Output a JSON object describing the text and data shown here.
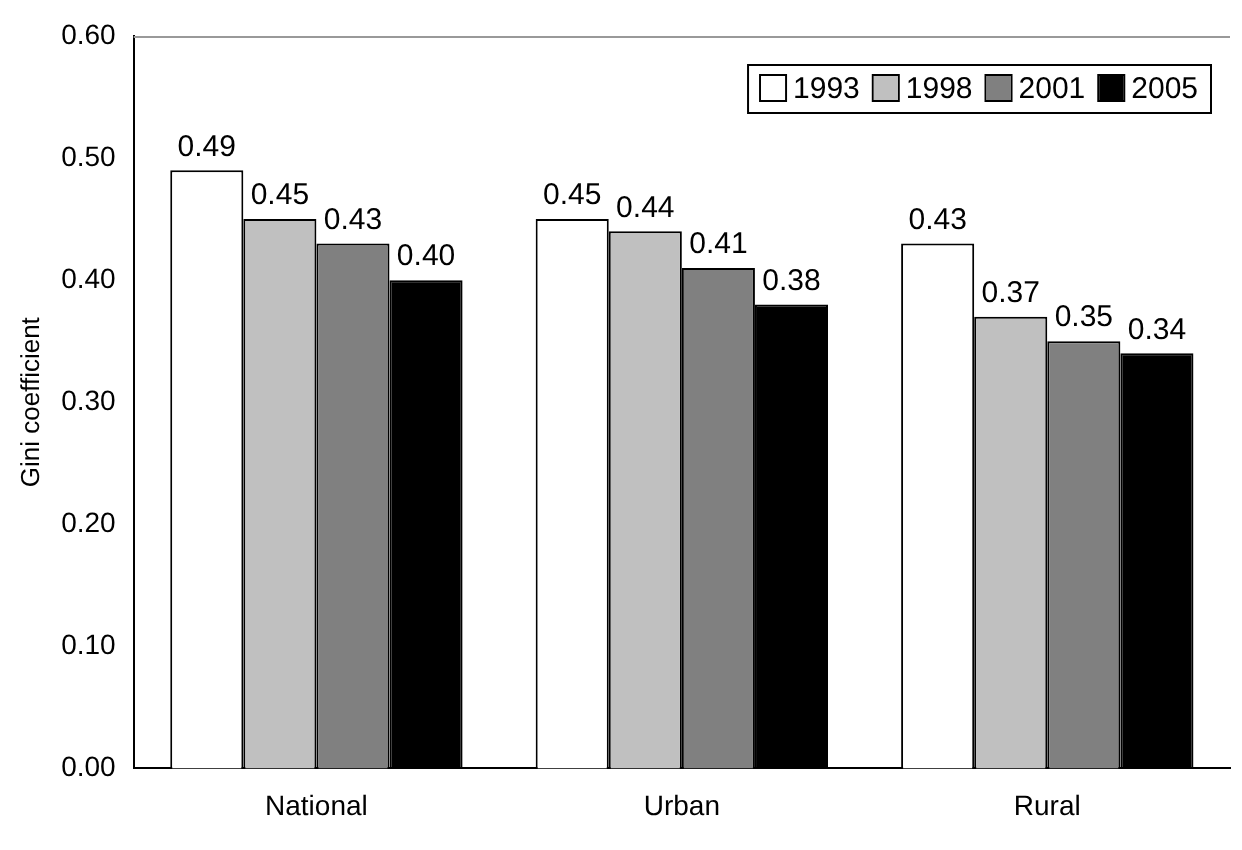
{
  "chart_data": {
    "type": "bar",
    "ylabel": "Gini coefficient",
    "categories": [
      "National",
      "Urban",
      "Rural"
    ],
    "series": [
      {
        "name": "1993",
        "color": "#ffffff",
        "values": [
          0.49,
          0.45,
          0.43
        ],
        "value_labels": [
          "0.49",
          "0.45",
          "0.43"
        ]
      },
      {
        "name": "1998",
        "color": "#c0c0c0",
        "values": [
          0.45,
          0.44,
          0.37
        ],
        "value_labels": [
          "0.45",
          "0.44",
          "0.37"
        ]
      },
      {
        "name": "2001",
        "color": "#808080",
        "values": [
          0.43,
          0.41,
          0.35
        ],
        "value_labels": [
          "0.43",
          "0.41",
          "0.35"
        ]
      },
      {
        "name": "2005",
        "color": "#000000",
        "values": [
          0.4,
          0.38,
          0.34
        ],
        "value_labels": [
          "0.40",
          "0.38",
          "0.34"
        ]
      }
    ],
    "ylim": [
      0,
      0.6
    ],
    "yticks": [
      {
        "value": 0,
        "label": "0.00"
      },
      {
        "value": 0.1,
        "label": "0.10"
      },
      {
        "value": 0.2,
        "label": "0.20"
      },
      {
        "value": 0.3,
        "label": "0.30"
      },
      {
        "value": 0.4,
        "label": "0.40"
      },
      {
        "value": 0.5,
        "label": "0.50"
      },
      {
        "value": 0.6,
        "label": "0.60"
      }
    ],
    "grid": false,
    "legend": "top right"
  }
}
